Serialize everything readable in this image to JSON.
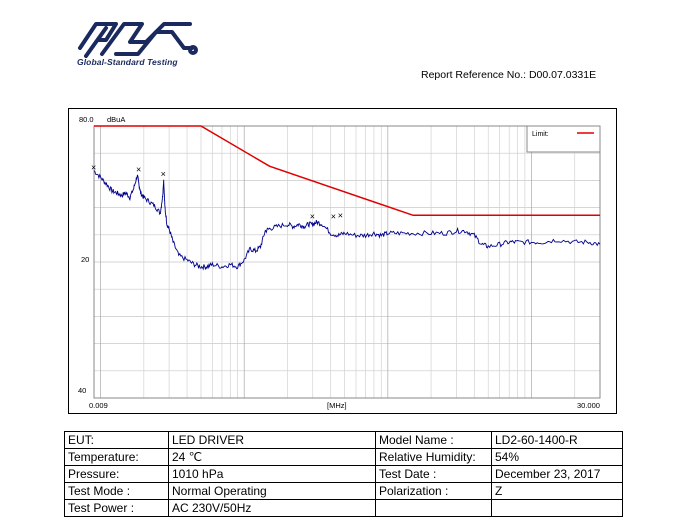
{
  "header": {
    "logo_text": "Global-Standard Testing",
    "report_reference": "Report Reference No.: D00.07.0331E",
    "logo_color": "#1a2a5e"
  },
  "chart_data": {
    "type": "line",
    "unit_label": "dBuA",
    "y_top_label": "80.0",
    "y_tick_labels": [
      "20",
      "40"
    ],
    "x_start_label": "0.009",
    "x_center_label": "[MHz]",
    "x_end_label": "30.000",
    "xlim": [
      0.009,
      30
    ],
    "x_scale": "log",
    "grid": true,
    "legend": {
      "placement": "top-right",
      "label": "Limit:",
      "color": "#e00000"
    },
    "series": [
      {
        "name": "Limit:",
        "color": "#e00000",
        "x": [
          0.009,
          0.05,
          0.15,
          1.5,
          30
        ],
        "y": [
          80,
          80,
          62,
          40,
          40
        ]
      },
      {
        "color": "#00008b",
        "x": [
          0.009,
          0.01,
          0.011,
          0.012,
          0.013,
          0.014,
          0.015,
          0.016,
          0.017,
          0.018,
          0.0185,
          0.019,
          0.02,
          0.022,
          0.024,
          0.026,
          0.027,
          0.0275,
          0.028,
          0.029,
          0.03,
          0.032,
          0.035,
          0.04,
          0.045,
          0.05,
          0.055,
          0.06,
          0.07,
          0.08,
          0.09,
          0.1,
          0.11,
          0.12,
          0.13,
          0.14,
          0.15,
          0.17,
          0.2,
          0.22,
          0.24,
          0.26,
          0.28,
          0.3,
          0.32,
          0.35,
          0.4,
          0.45,
          0.5,
          0.6,
          0.7,
          0.8,
          0.9,
          1.0,
          1.2,
          1.5,
          2.0,
          2.5,
          3.0,
          3.5,
          4.0,
          4.5,
          5.0,
          6.0,
          7.0,
          8.0,
          10.0,
          12.0,
          15.0,
          20.0,
          25.0,
          30.0
        ],
        "y": [
          60,
          57,
          54,
          51,
          50,
          49,
          50,
          48,
          52,
          58,
          54,
          50,
          48,
          46,
          44,
          41,
          48,
          56,
          44,
          36,
          34,
          28,
          22,
          20,
          18,
          17,
          17,
          18,
          17,
          18,
          17,
          20,
          25,
          24,
          26,
          33,
          34,
          35,
          36,
          35,
          36,
          35,
          36,
          36,
          37,
          36,
          32,
          31,
          32,
          31,
          31,
          32,
          31,
          32,
          32,
          32,
          32,
          32,
          33,
          33,
          31,
          27,
          26,
          27,
          28,
          28,
          28,
          28,
          29,
          28,
          28,
          27
        ]
      }
    ],
    "markers": [
      {
        "x": 0.009,
        "y": 61
      },
      {
        "x": 0.0185,
        "y": 60
      },
      {
        "x": 0.0275,
        "y": 58
      },
      {
        "x": 0.3,
        "y": 39
      },
      {
        "x": 0.42,
        "y": 39
      },
      {
        "x": 0.47,
        "y": 39.5
      }
    ]
  },
  "test_info": {
    "rows": [
      {
        "label1": "EUT:",
        "value1": "LED DRIVER",
        "label2": "Model Name :",
        "value2": "LD2-60-1400-R"
      },
      {
        "label1": "Temperature:",
        "value1": "24 ℃",
        "label2": "Relative Humidity:",
        "value2": "54%"
      },
      {
        "label1": "Pressure:",
        "value1": "1010 hPa",
        "label2": "Test Date :",
        "value2": "December 23, 2017"
      },
      {
        "label1": "Test Mode :",
        "value1": "Normal Operating",
        "label2": "Polarization :",
        "value2": "Z"
      },
      {
        "label1": "Test Power :",
        "value1": "AC 230V/50Hz",
        "label2": "",
        "value2": ""
      }
    ]
  }
}
